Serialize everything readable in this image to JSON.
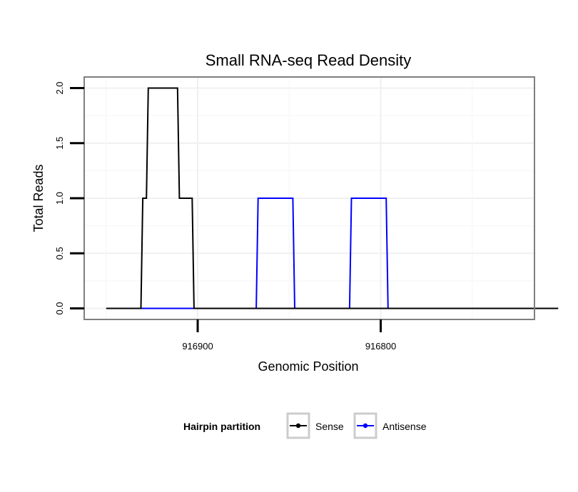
{
  "chart_data": {
    "type": "line",
    "title": "Small RNA-seq Read Density",
    "xlabel": "Genomic Position",
    "ylabel": "Total Reads",
    "x_reversed": true,
    "xlim": [
      916962,
      916716
    ],
    "ylim": [
      -0.1,
      2.1
    ],
    "x_ticks": [
      916900,
      916800
    ],
    "x_tick_labels": [
      "916900",
      "916800"
    ],
    "y_ticks": [
      0.0,
      0.5,
      1.0,
      1.5,
      2.0
    ],
    "y_tick_labels": [
      "0.0",
      "0.5",
      "1.0",
      "1.5",
      "2.0"
    ],
    "grid": true,
    "legend": {
      "title": "Hairpin partition",
      "position": "bottom",
      "entries": [
        "Sense",
        "Antisense"
      ]
    },
    "series": [
      {
        "name": "Sense",
        "color": "#000000",
        "x": [
          916950,
          916931,
          916930,
          916928,
          916927,
          916911,
          916910,
          916903,
          916902,
          916703
        ],
        "y": [
          0,
          0,
          1,
          1,
          2,
          2,
          1,
          1,
          0,
          0
        ]
      },
      {
        "name": "Antisense",
        "color": "#0000ff",
        "x": [
          916931,
          916868,
          916867,
          916848,
          916847,
          916817,
          916816,
          916797,
          916796,
          916750
        ],
        "y": [
          0,
          0,
          1,
          1,
          0,
          0,
          1,
          1,
          0,
          0
        ]
      }
    ]
  }
}
